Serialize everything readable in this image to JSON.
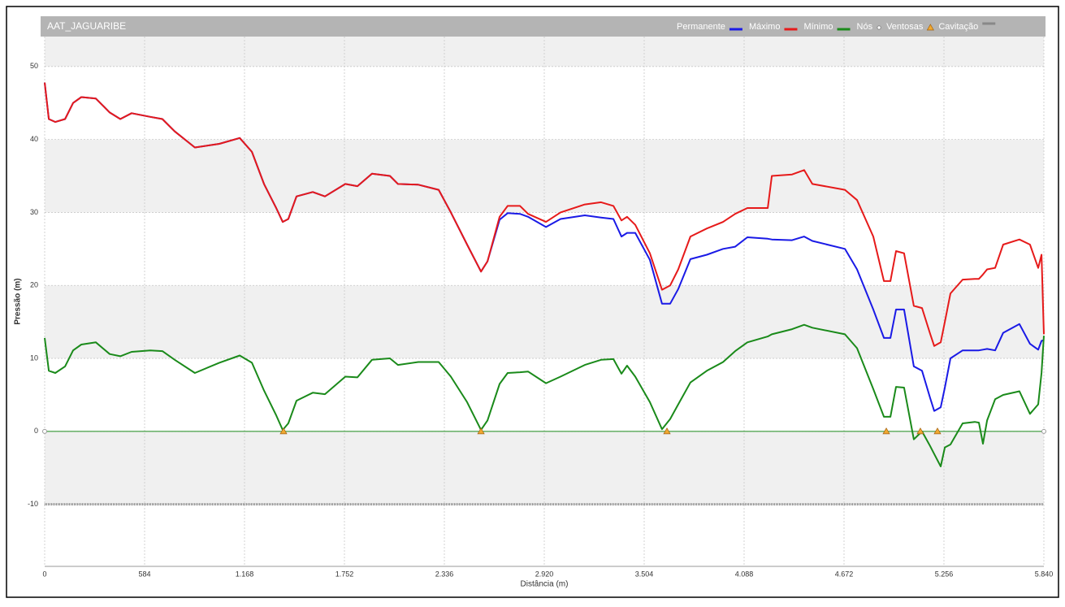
{
  "chart_data": {
    "type": "line",
    "title": "AAT_JAGUARIBE",
    "x_label": "Distância (m)",
    "y_label": "Pressão (m)",
    "x": [
      0,
      24,
      62,
      119,
      166,
      214,
      299,
      380,
      442,
      508,
      617,
      688,
      760,
      878,
      1021,
      1140,
      1211,
      1282,
      1353,
      1391,
      1424,
      1472,
      1567,
      1638,
      1757,
      1828,
      1913,
      2018,
      2065,
      2184,
      2303,
      2374,
      2469,
      2550,
      2588,
      2659,
      2706,
      2778,
      2825,
      2930,
      3015,
      3157,
      3252,
      3324,
      3371,
      3404,
      3452,
      3537,
      3608,
      3656,
      3703,
      3774,
      3870,
      3965,
      4036,
      4107,
      4226,
      4250,
      4368,
      4439,
      4487,
      4677,
      4748,
      4843,
      4905,
      4943,
      4976,
      5023,
      5080,
      5128,
      5175,
      5199,
      5237,
      5261,
      5294,
      5365,
      5436,
      5460,
      5484,
      5508,
      5555,
      5602,
      5697,
      5759,
      5807,
      5826,
      5840
    ],
    "series": [
      {
        "name": "Permanente",
        "color": "#1a1ae6",
        "values": [
          47.8,
          42.8,
          42.4,
          42.8,
          45,
          45.8,
          45.6,
          43.7,
          42.8,
          43.6,
          43.1,
          42.8,
          41.1,
          38.9,
          39.4,
          40.2,
          38.3,
          33.9,
          30.6,
          28.7,
          29.1,
          32.2,
          32.8,
          32.2,
          33.9,
          33.6,
          35.3,
          35,
          33.9,
          33.8,
          33.1,
          30,
          25.6,
          21.9,
          23.3,
          29.0,
          29.9,
          29.8,
          29.4,
          28,
          29.1,
          29.6,
          29.3,
          29.1,
          26.7,
          27.2,
          27.2,
          23.5,
          17.5,
          17.5,
          19.5,
          23.6,
          24.2,
          25,
          25.3,
          26.6,
          26.4,
          26.3,
          26.2,
          26.7,
          26.1,
          25,
          22.2,
          16.7,
          12.8,
          12.8,
          16.7,
          16.7,
          8.9,
          8.3,
          4.6,
          2.8,
          3.3,
          6,
          10,
          11.1,
          11.1,
          11.1,
          11.2,
          11.3,
          11.1,
          13.5,
          14.7,
          12,
          11.2,
          12.4,
          12.5
        ]
      },
      {
        "name": "Máximo",
        "color": "#e61a1a",
        "values": [
          47.8,
          42.8,
          42.4,
          42.8,
          45,
          45.8,
          45.6,
          43.7,
          42.8,
          43.6,
          43.1,
          42.8,
          41.1,
          38.9,
          39.4,
          40.2,
          38.3,
          33.9,
          30.6,
          28.7,
          29.1,
          32.2,
          32.8,
          32.2,
          33.9,
          33.6,
          35.3,
          35,
          33.9,
          33.8,
          33.1,
          30,
          25.6,
          21.9,
          23.3,
          29.4,
          30.9,
          30.9,
          29.8,
          28.7,
          30,
          31.1,
          31.4,
          30.9,
          28.9,
          29.4,
          28.3,
          24.4,
          19.4,
          20,
          22.2,
          26.7,
          27.8,
          28.7,
          29.8,
          30.6,
          30.6,
          35,
          35.2,
          35.8,
          33.9,
          33.1,
          31.7,
          26.7,
          20.6,
          20.6,
          24.7,
          24.4,
          17.2,
          16.9,
          13.4,
          11.7,
          12.2,
          15,
          18.9,
          20.8,
          20.9,
          20.9,
          21.5,
          22.2,
          22.4,
          25.6,
          26.3,
          25.6,
          22.4,
          24.2,
          13.3
        ]
      },
      {
        "name": "Mínimo",
        "color": "#1a8a1a",
        "values": [
          12.8,
          8.3,
          8,
          8.9,
          11.1,
          11.9,
          12.2,
          10.6,
          10.3,
          10.9,
          11.1,
          11,
          9.8,
          8,
          9.4,
          10.4,
          9.4,
          5.6,
          2.2,
          0.2,
          1.1,
          4.2,
          5.3,
          5.1,
          7.5,
          7.4,
          9.8,
          10,
          9.1,
          9.5,
          9.5,
          7.5,
          4,
          0.2,
          1.5,
          6.5,
          8,
          8.1,
          8.2,
          6.6,
          7.5,
          9.1,
          9.8,
          9.9,
          7.9,
          9,
          7.5,
          4,
          0.3,
          1.7,
          3.7,
          6.7,
          8.3,
          9.5,
          11,
          12.2,
          13,
          13.3,
          14,
          14.6,
          14.2,
          13.3,
          11.4,
          5.8,
          2,
          2,
          6.1,
          6,
          -1.1,
          0,
          -2,
          -3.1,
          -4.8,
          -2.2,
          -1.8,
          1.1,
          1.3,
          1.2,
          -1.7,
          1.5,
          4.4,
          5,
          5.5,
          2.4,
          3.7,
          8,
          13.1
        ]
      }
    ],
    "nodes": {
      "name": "Nós",
      "x": [
        0,
        5840
      ],
      "values": [
        0,
        0
      ]
    },
    "ventosas": {
      "name": "Ventosas",
      "color": "#f0a830",
      "x": [
        1396,
        2550,
        3637,
        4919,
        5118,
        5218
      ],
      "values": [
        0,
        0,
        0,
        0,
        0,
        0
      ]
    },
    "cavitation": {
      "name": "Cavitação",
      "color": "#888888",
      "value": -10
    },
    "xlim": [
      0,
      5840
    ],
    "xticks": [
      0,
      584,
      {
        "value": 1168,
        "label": "1.168"
      },
      {
        "value": 1752,
        "label": "1.752"
      },
      {
        "value": 2336,
        "label": "2.336"
      },
      {
        "value": 2920,
        "label": "2.920"
      },
      {
        "value": 3504,
        "label": "3.504"
      },
      {
        "value": 4088,
        "label": "4.088"
      },
      {
        "value": 4672,
        "label": "4.672"
      },
      {
        "value": 5256,
        "label": "5.256"
      },
      {
        "value": 5840,
        "label": "5.840"
      }
    ],
    "ylim": [
      -18.5,
      54.1
    ],
    "yticks": [
      -10,
      0,
      10,
      20,
      30,
      40,
      50
    ],
    "grid": true
  }
}
